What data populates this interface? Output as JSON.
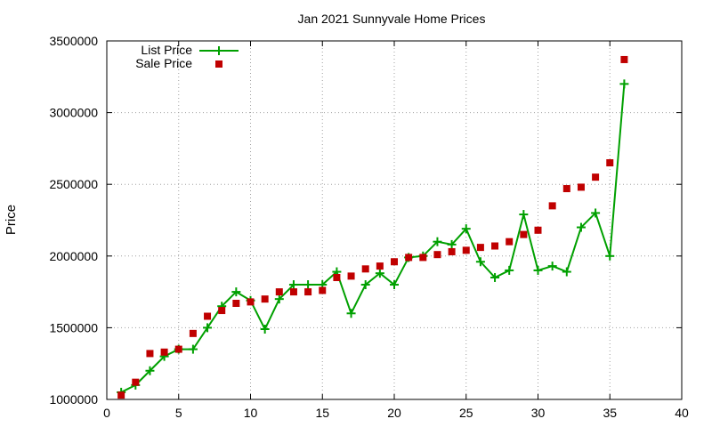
{
  "chart_data": {
    "type": "line",
    "title": "Jan 2021 Sunnyvale Home Prices",
    "xlabel": "",
    "ylabel": "Price",
    "xlim": [
      0,
      40
    ],
    "ylim": [
      1000000,
      3500000
    ],
    "x_ticks": [
      "0",
      "5",
      "10",
      "15",
      "20",
      "25",
      "30",
      "35",
      "40"
    ],
    "y_ticks": [
      "1000000",
      "1500000",
      "2000000",
      "2500000",
      "3000000",
      "3500000"
    ],
    "grid": true,
    "legend_position": "top-left",
    "series": [
      {
        "name": "List Price",
        "style": "line-with-plus-markers",
        "color": "#00a000",
        "x": [
          1,
          2,
          3,
          4,
          5,
          6,
          7,
          8,
          9,
          10,
          11,
          12,
          13,
          14,
          15,
          16,
          17,
          18,
          19,
          20,
          21,
          22,
          23,
          24,
          25,
          26,
          27,
          28,
          29,
          30,
          31,
          32,
          33,
          34,
          35,
          36
        ],
        "y": [
          1050000,
          1100000,
          1200000,
          1300000,
          1350000,
          1350000,
          1500000,
          1650000,
          1750000,
          1690000,
          1490000,
          1700000,
          1800000,
          1800000,
          1800000,
          1890000,
          1600000,
          1800000,
          1880000,
          1800000,
          1990000,
          2000000,
          2100000,
          2080000,
          2190000,
          1960000,
          1850000,
          1900000,
          2290000,
          1900000,
          1930000,
          1890000,
          2200000,
          2300000,
          2000000,
          3200000
        ]
      },
      {
        "name": "Sale Price",
        "style": "square-markers",
        "color": "#c00000",
        "x": [
          1,
          2,
          3,
          4,
          5,
          6,
          7,
          8,
          9,
          10,
          11,
          12,
          13,
          14,
          15,
          16,
          17,
          18,
          19,
          20,
          21,
          22,
          23,
          24,
          25,
          26,
          27,
          28,
          29,
          30,
          31,
          32,
          33,
          34,
          35,
          36
        ],
        "y": [
          1030000,
          1120000,
          1320000,
          1330000,
          1350000,
          1460000,
          1580000,
          1620000,
          1670000,
          1680000,
          1700000,
          1750000,
          1750000,
          1750000,
          1760000,
          1850000,
          1860000,
          1910000,
          1930000,
          1960000,
          1990000,
          1990000,
          2010000,
          2030000,
          2040000,
          2060000,
          2070000,
          2100000,
          2150000,
          2180000,
          2350000,
          2470000,
          2480000,
          2550000,
          2650000,
          3370000
        ]
      }
    ]
  }
}
